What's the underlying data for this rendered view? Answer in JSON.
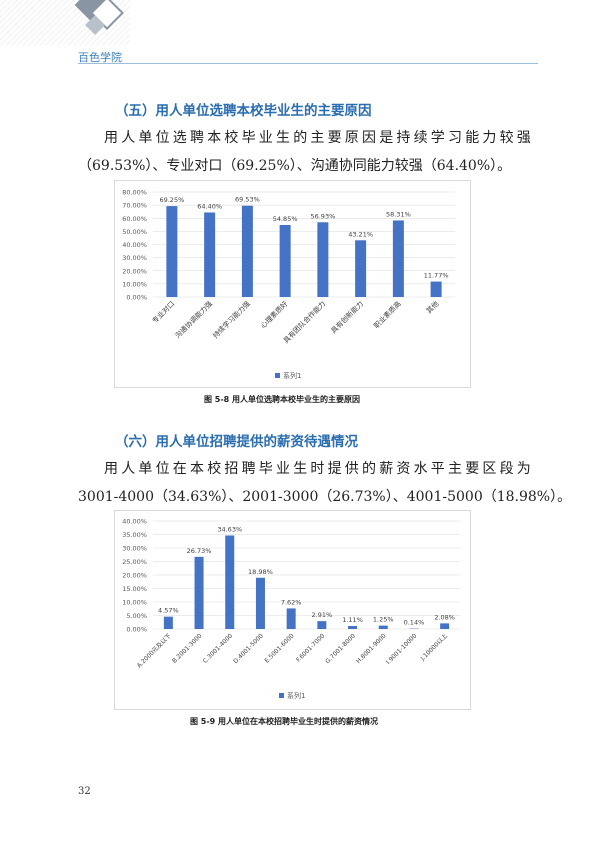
{
  "header": {
    "college_name": "百色学院"
  },
  "section5": {
    "heading": "（五）用人单位选聘本校毕业生的主要原因",
    "paragraph_lines": [
      "用人单位选聘本校毕业生的主要原因是持续学习能力较强",
      "（69.53%）、专业对口（69.25%）、沟通协同能力较强（64.40%）。"
    ],
    "caption": "图  5-8 用人单位选聘本校毕业生的主要原因"
  },
  "section6": {
    "heading": "（六）用人单位招聘提供的薪资待遇情况",
    "paragraph_lines": [
      "用人单位在本校招聘毕业生时提供的薪资水平主要区段为",
      "3001-4000（34.63%）、2001-3000（26.73%）、4001-5000（18.98%）。"
    ],
    "caption": "图  5-9 用人单位在本校招聘毕业生时提供的薪资情况"
  },
  "page_number": "32",
  "colors": {
    "bar": "#4472c4",
    "heading": "#2a6db0",
    "grid": "#d9d9d9"
  },
  "chart_data": [
    {
      "type": "bar",
      "categories": [
        "专业对口",
        "沟通协调能力强",
        "持续学习能力强",
        "心理素质好",
        "具有团队合作能力",
        "具有创新能力",
        "职业素质高",
        "其他"
      ],
      "series": [
        {
          "name": "系列1",
          "values": [
            69.25,
            64.4,
            69.53,
            54.85,
            56.93,
            43.21,
            58.31,
            11.77
          ]
        }
      ],
      "value_labels": [
        "69.25%",
        "64.40%",
        "69.53%",
        "54.85%",
        "56.93%",
        "43.21%",
        "58.31%",
        "11.77%"
      ],
      "y_ticks": [
        "0.00%",
        "10.00%",
        "20.00%",
        "30.00%",
        "40.00%",
        "50.00%",
        "60.00%",
        "70.00%",
        "80.00%"
      ],
      "ylim": [
        0,
        80
      ],
      "grid": true,
      "legend": "bottom"
    },
    {
      "type": "bar",
      "categories": [
        "A.2000元及以下",
        "B.2001-3000",
        "C.3001-4000",
        "D.4001-5000",
        "E.5001-6000",
        "F.6001-7000",
        "G.7001-8000",
        "H.8001-9000",
        "I.9001-10000",
        "J.10000以上"
      ],
      "series": [
        {
          "name": "系列1",
          "values": [
            4.57,
            26.73,
            34.63,
            18.98,
            7.62,
            2.91,
            1.11,
            1.25,
            0.14,
            2.08
          ]
        }
      ],
      "value_labels": [
        "4.57%",
        "26.73%",
        "34.63%",
        "18.98%",
        "7.62%",
        "2.91%",
        "1.11%",
        "1.25%",
        "0.14%",
        "2.08%"
      ],
      "y_ticks": [
        "0.00%",
        "5.00%",
        "10.00%",
        "15.00%",
        "20.00%",
        "25.00%",
        "30.00%",
        "35.00%",
        "40.00%"
      ],
      "ylim": [
        0,
        40
      ],
      "grid": true,
      "legend": "bottom"
    }
  ]
}
